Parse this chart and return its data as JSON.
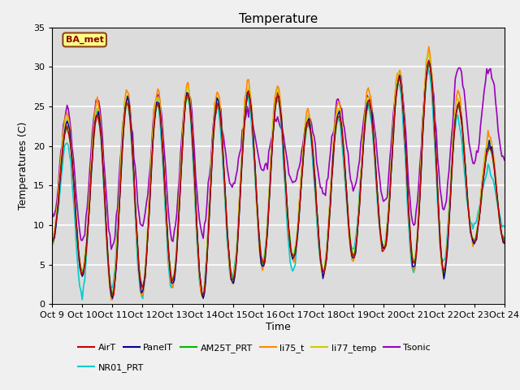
{
  "title": "Temperature",
  "ylabel": "Temperatures (C)",
  "xlabel": "Time",
  "station_label": "BA_met",
  "ylim": [
    0,
    35
  ],
  "xtick_labels": [
    "Oct 9",
    "Oct 10",
    "Oct 11",
    "Oct 12",
    "Oct 13",
    "Oct 14",
    "Oct 15",
    "Oct 16",
    "Oct 17",
    "Oct 18",
    "Oct 19",
    "Oct 20",
    "Oct 21",
    "Oct 22",
    "Oct 23",
    "Oct 24"
  ],
  "series_order": [
    "Tsonic",
    "NR01_PRT",
    "li75_t",
    "li77_temp",
    "AM25T_PRT",
    "PanelT",
    "AirT"
  ],
  "series": {
    "AirT": {
      "color": "#cc0000",
      "lw": 1.0
    },
    "PanelT": {
      "color": "#000099",
      "lw": 1.0
    },
    "AM25T_PRT": {
      "color": "#00bb00",
      "lw": 1.0
    },
    "li75_t": {
      "color": "#ff8800",
      "lw": 1.2
    },
    "li77_temp": {
      "color": "#cccc00",
      "lw": 1.2
    },
    "Tsonic": {
      "color": "#9900bb",
      "lw": 1.2
    },
    "NR01_PRT": {
      "color": "#00cccc",
      "lw": 1.2
    }
  },
  "legend_order": [
    "AirT",
    "PanelT",
    "AM25T_PRT",
    "li75_t",
    "li77_temp",
    "Tsonic",
    "NR01_PRT"
  ],
  "grid_color": "#ffffff",
  "bg_color": "#dcdcdc",
  "fig_color": "#f0f0f0",
  "title_fontsize": 11,
  "label_fontsize": 9,
  "tick_fontsize": 8
}
